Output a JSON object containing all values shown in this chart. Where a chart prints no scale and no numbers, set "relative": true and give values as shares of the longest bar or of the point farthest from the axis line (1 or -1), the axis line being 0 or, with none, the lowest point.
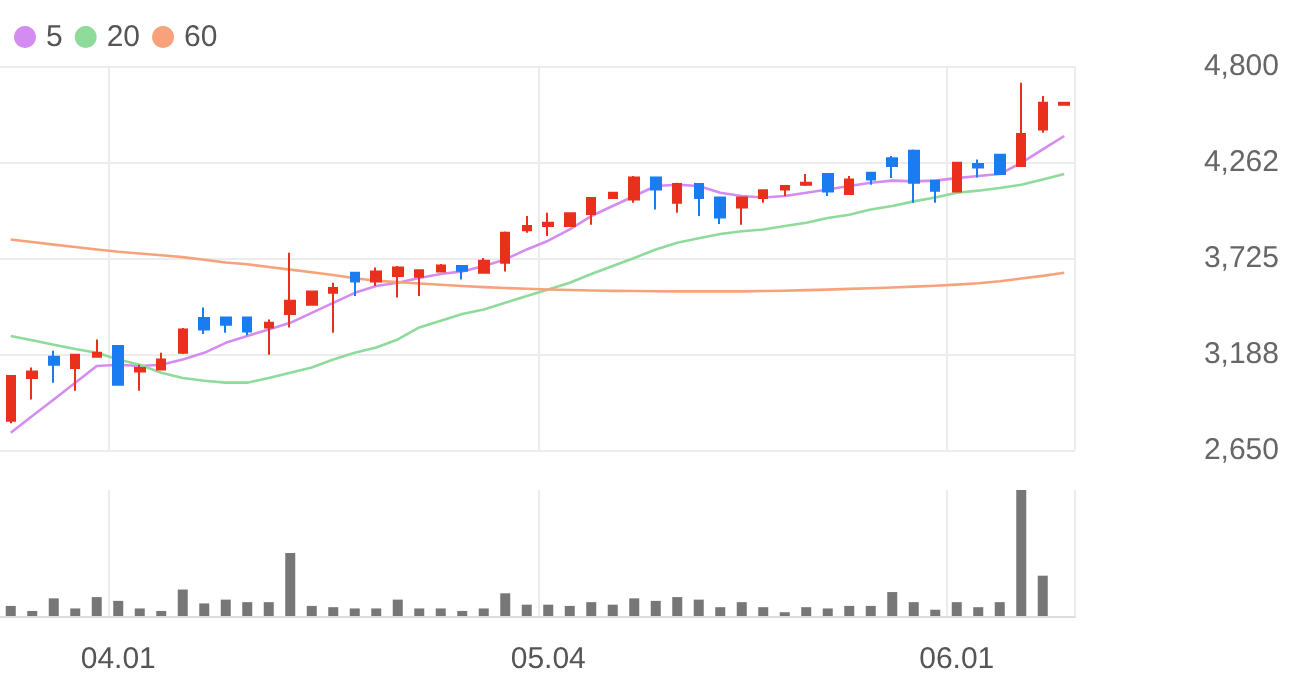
{
  "chart_data": [
    {
      "type": "candlestick",
      "categories": [
        null,
        null,
        null,
        null,
        null,
        "04.01",
        null,
        null,
        null,
        null,
        null,
        null,
        null,
        null,
        null,
        null,
        null,
        null,
        null,
        null,
        null,
        null,
        null,
        null,
        null,
        "05.04",
        null,
        null,
        null,
        null,
        null,
        null,
        null,
        null,
        null,
        null,
        null,
        null,
        null,
        null,
        null,
        null,
        null,
        null,
        "06.01",
        null,
        null,
        null,
        null,
        null
      ],
      "ohlc": [
        [
          2814,
          3070,
          2800,
          3064
        ],
        [
          3053,
          3112,
          2933,
          3090
        ],
        [
          3172,
          3206,
          3027,
          3127
        ],
        [
          3109,
          3183,
          2982,
          3183
        ],
        [
          3172,
          3269,
          3172,
          3194
        ],
        [
          3232,
          3232,
          3015,
          3015
        ],
        [
          3090,
          3127,
          2982,
          3109
        ],
        [
          3101,
          3194,
          3101,
          3157
        ],
        [
          3194,
          3333,
          3187,
          3325
        ],
        [
          3389,
          3448,
          3299,
          3325
        ],
        [
          3392,
          3392,
          3306,
          3351
        ],
        [
          3392,
          3392,
          3292,
          3314
        ],
        [
          3336,
          3381,
          3183,
          3362
        ],
        [
          3411,
          3754,
          3336,
          3486
        ],
        [
          3463,
          3538,
          3463,
          3538
        ],
        [
          3530,
          3586,
          3306,
          3557
        ],
        [
          3642,
          3642,
          3512,
          3594
        ],
        [
          3594,
          3672,
          3568,
          3650
        ],
        [
          3624,
          3680,
          3504,
          3672
        ],
        [
          3620,
          3660,
          3512,
          3657
        ],
        [
          3650,
          3691,
          3650,
          3683
        ],
        [
          3680,
          3680,
          3605,
          3654
        ],
        [
          3642,
          3725,
          3642,
          3710
        ],
        [
          3698,
          3874,
          3650,
          3866
        ],
        [
          3881,
          3960,
          3866,
          3904
        ],
        [
          3904,
          3978,
          3848,
          3922
        ],
        [
          3904,
          3975,
          3904,
          3975
        ],
        [
          3971,
          4061,
          3911,
          4061
        ],
        [
          4061,
          4090,
          4061,
          4090
        ],
        [
          4053,
          4184,
          4034,
          4176
        ],
        [
          4176,
          4176,
          3997,
          4109
        ],
        [
          4034,
          4146,
          3978,
          4139
        ],
        [
          4139,
          4139,
          3960,
          4061
        ],
        [
          4064,
          4064,
          3915,
          3952
        ],
        [
          4008,
          4064,
          3911,
          4064
        ],
        [
          4061,
          4105,
          4034,
          4105
        ],
        [
          4109,
          4128,
          4072,
          4128
        ],
        [
          4135,
          4195,
          4128,
          4146
        ],
        [
          4195,
          4195,
          4072,
          4098
        ],
        [
          4083,
          4184,
          4083,
          4165
        ],
        [
          4202,
          4202,
          4135,
          4165
        ],
        [
          4284,
          4296,
          4173,
          4240
        ],
        [
          4326,
          4333,
          4034,
          4146
        ],
        [
          4158,
          4158,
          4034,
          4102
        ],
        [
          4098,
          4258,
          4098,
          4258
        ],
        [
          4251,
          4277,
          4176,
          4232
        ],
        [
          4303,
          4303,
          4195,
          4195
        ],
        [
          4240,
          4706,
          4240,
          4419
        ],
        [
          4445,
          4632,
          4426,
          4594
        ],
        [
          4583,
          4594,
          4583,
          4594
        ]
      ],
      "series": [
        {
          "name": "5",
          "type": "line",
          "color": "#d58cf0",
          "values": [
            2747,
            2840,
            2933,
            3027,
            3120,
            3127,
            3120,
            3127,
            3157,
            3194,
            3250,
            3288,
            3325,
            3362,
            3418,
            3474,
            3530,
            3568,
            3586,
            3613,
            3635,
            3650,
            3680,
            3717,
            3773,
            3822,
            3885,
            3960,
            4016,
            4072,
            4128,
            4135,
            4128,
            4090,
            4072,
            4064,
            4072,
            4090,
            4109,
            4128,
            4146,
            4158,
            4154,
            4158,
            4172,
            4184,
            4195,
            4258,
            4333,
            4408
          ]
        },
        {
          "name": "20",
          "type": "line",
          "color": "#8edb9b",
          "values": [
            3288,
            3264,
            3239,
            3215,
            3194,
            3157,
            3127,
            3083,
            3053,
            3038,
            3027,
            3027,
            3053,
            3083,
            3112,
            3157,
            3194,
            3224,
            3269,
            3336,
            3374,
            3411,
            3437,
            3474,
            3512,
            3549,
            3586,
            3635,
            3680,
            3725,
            3773,
            3810,
            3836,
            3859,
            3875,
            3885,
            3904,
            3922,
            3949,
            3967,
            3997,
            4016,
            4042,
            4064,
            4090,
            4102,
            4117,
            4135,
            4165,
            4195
          ]
        },
        {
          "name": "60",
          "type": "line",
          "color": "#f7a27a",
          "values": [
            3829,
            3815,
            3800,
            3787,
            3773,
            3760,
            3750,
            3740,
            3730,
            3715,
            3700,
            3690,
            3675,
            3660,
            3645,
            3630,
            3612,
            3598,
            3590,
            3582,
            3575,
            3568,
            3562,
            3557,
            3553,
            3549,
            3546,
            3543,
            3541,
            3540,
            3539,
            3538,
            3538,
            3538,
            3538,
            3540,
            3542,
            3545,
            3548,
            3552,
            3556,
            3560,
            3565,
            3570,
            3576,
            3584,
            3595,
            3610,
            3625,
            3642
          ]
        }
      ],
      "ylim": [
        2650,
        4800
      ],
      "yticks": [
        {
          "value": 2650,
          "label": "2,650"
        },
        {
          "value": 3188,
          "label": "3,188"
        },
        {
          "value": 3725,
          "label": "3,725"
        },
        {
          "value": 4262,
          "label": "4,262"
        },
        {
          "value": 4800,
          "label": "4,800"
        }
      ],
      "grid": true,
      "legend": "top left",
      "marker": "none",
      "tick_labels": "y"
    },
    {
      "type": "bar",
      "relative": true,
      "categories": [
        null,
        null,
        null,
        null,
        null,
        "04.01",
        null,
        null,
        null,
        null,
        null,
        null,
        null,
        null,
        null,
        null,
        null,
        null,
        null,
        null,
        null,
        null,
        null,
        null,
        null,
        "05.04",
        null,
        null,
        null,
        null,
        null,
        null,
        null,
        null,
        null,
        null,
        null,
        null,
        null,
        null,
        null,
        null,
        null,
        null,
        "06.01",
        null,
        null,
        null,
        null,
        null
      ],
      "color": "#777777",
      "values": [
        0.08,
        0.04,
        0.14,
        0.06,
        0.15,
        0.12,
        0.06,
        0.04,
        0.21,
        0.1,
        0.13,
        0.11,
        0.11,
        0.5,
        0.08,
        0.07,
        0.06,
        0.06,
        0.13,
        0.06,
        0.06,
        0.04,
        0.06,
        0.18,
        0.09,
        0.09,
        0.08,
        0.11,
        0.09,
        0.14,
        0.12,
        0.15,
        0.13,
        0.07,
        0.11,
        0.07,
        0.03,
        0.07,
        0.06,
        0.08,
        0.08,
        0.19,
        0.11,
        0.05,
        0.11,
        0.07,
        0.11,
        1,
        0.32,
        0
      ],
      "grid": "x",
      "legend": false,
      "tick_labels": "x"
    }
  ]
}
